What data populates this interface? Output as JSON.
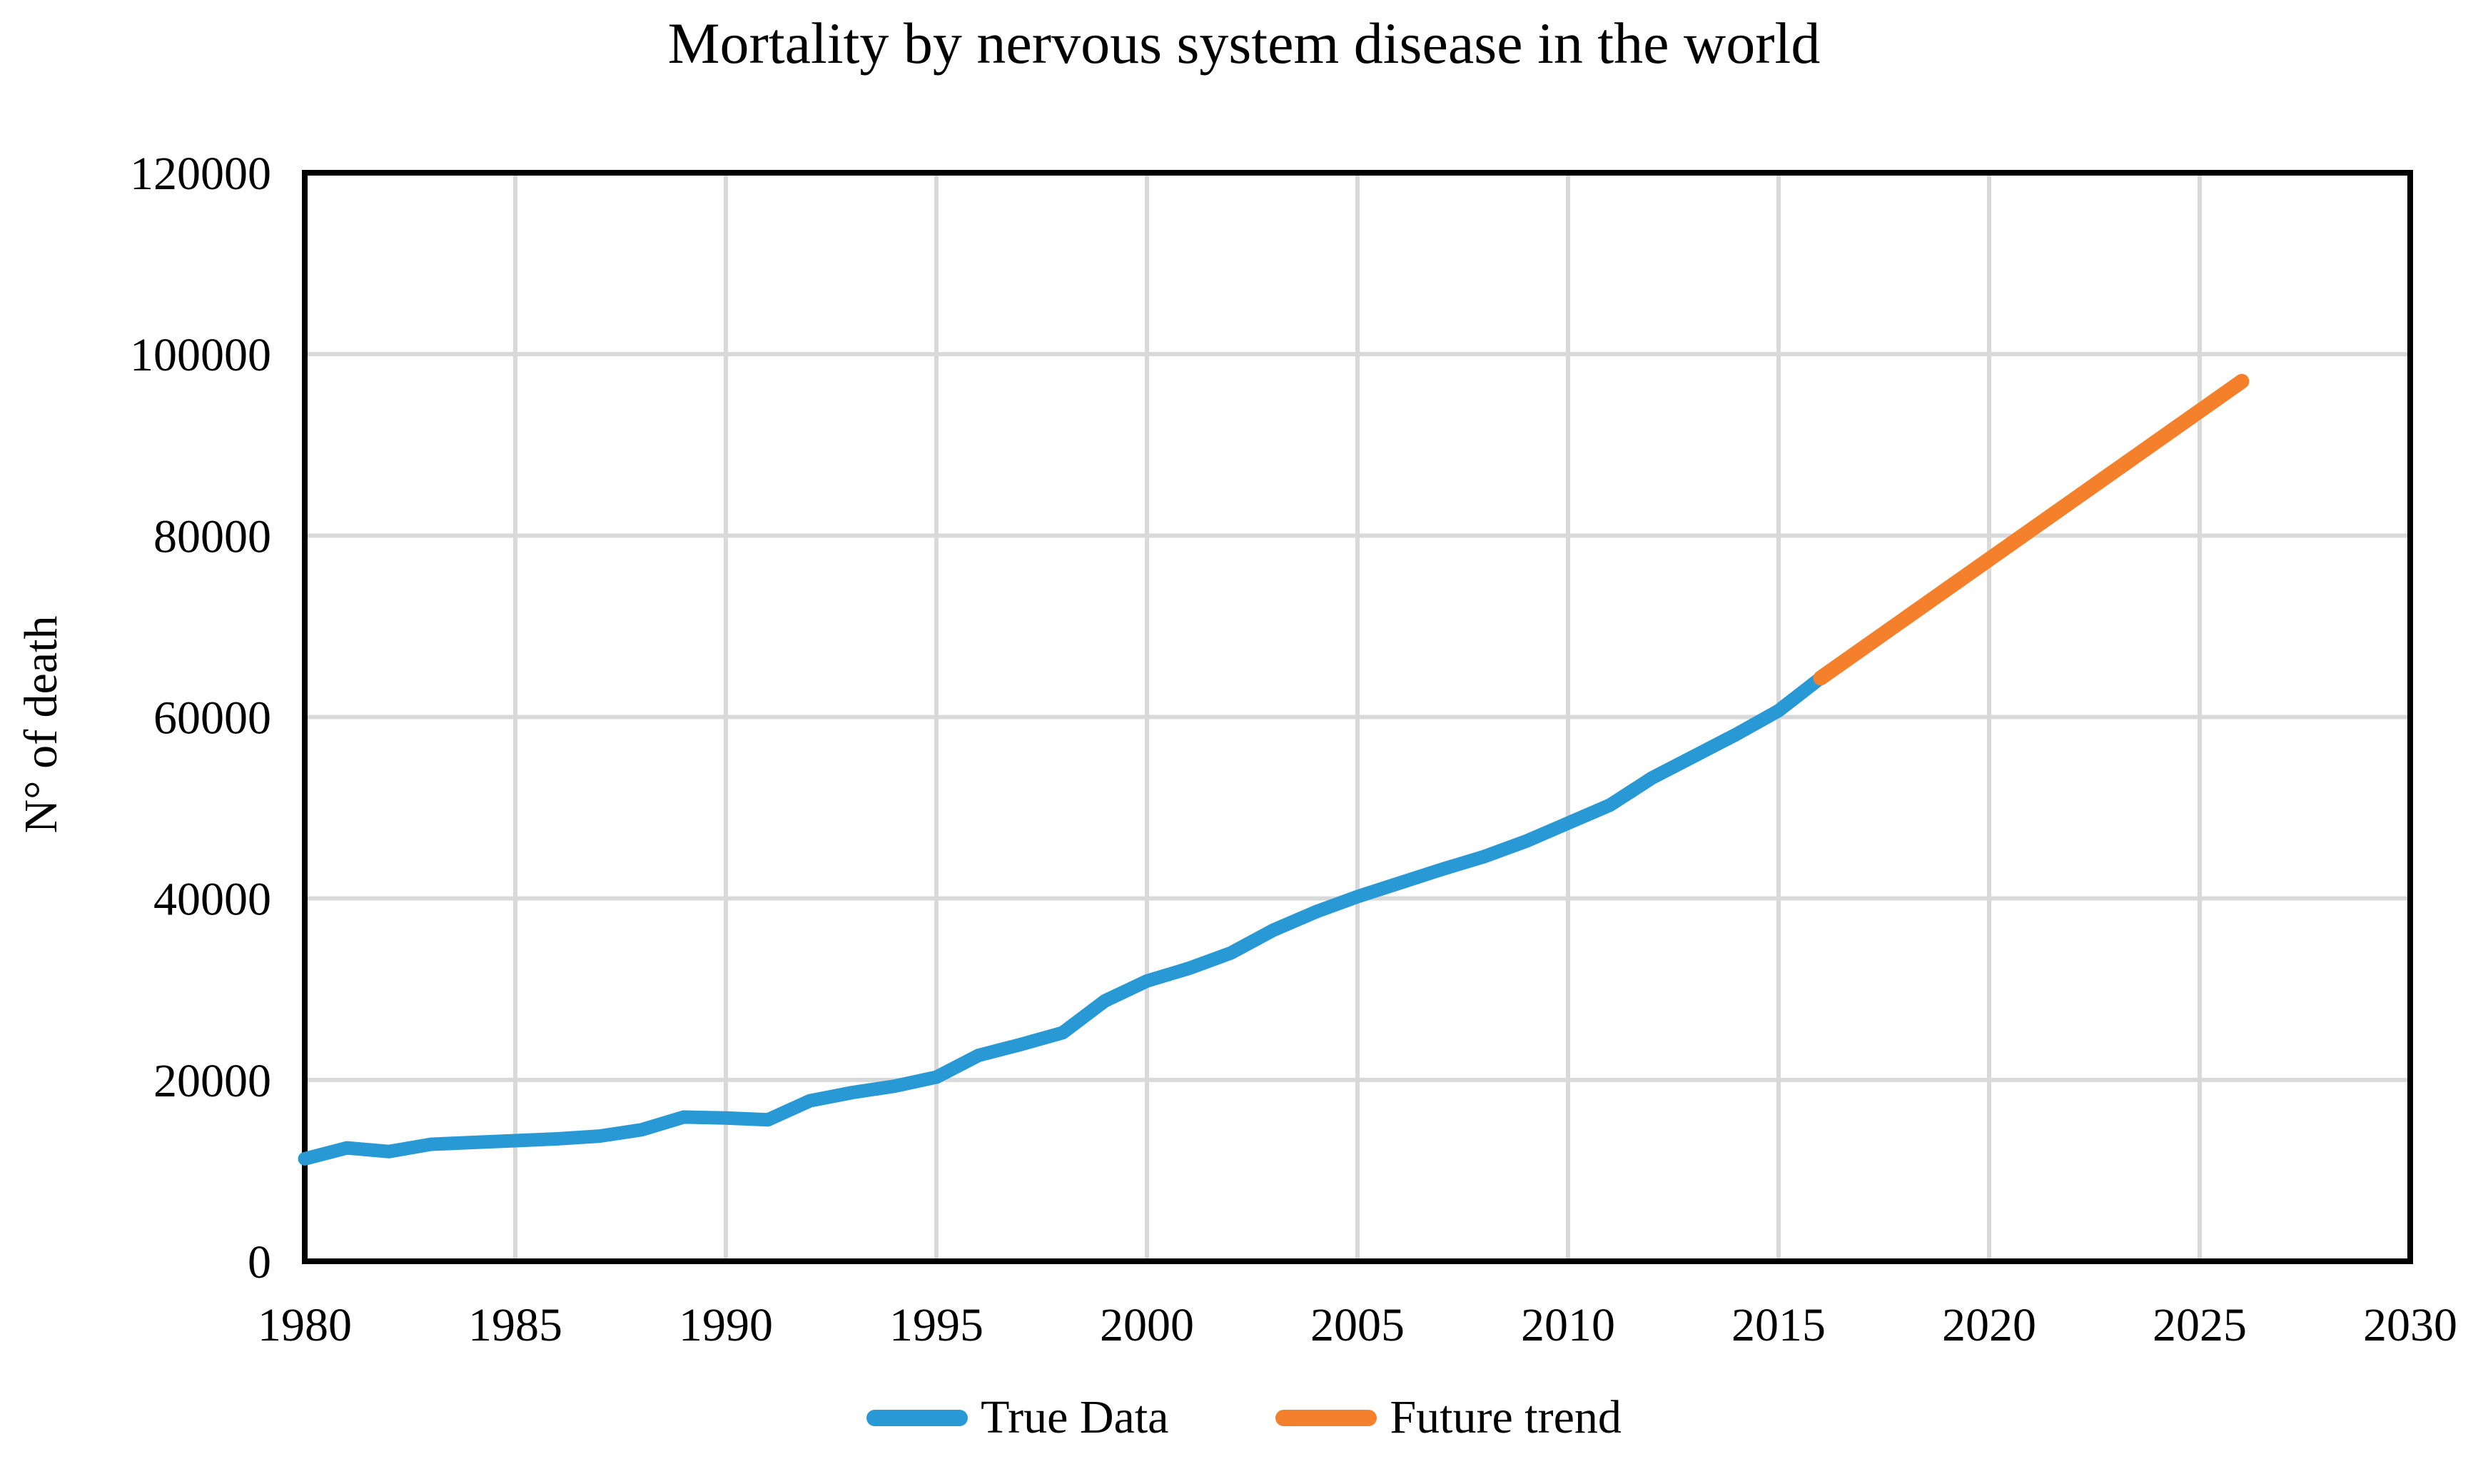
{
  "title": "Mortality by nervous system disease in the world",
  "y_axis": {
    "label": "N° of death",
    "ticks": [
      "0",
      "20000",
      "40000",
      "60000",
      "80000",
      "100000",
      "120000"
    ],
    "min": 0,
    "max": 120000,
    "step": 20000
  },
  "x_axis": {
    "ticks": [
      "1980",
      "1985",
      "1990",
      "1995",
      "2000",
      "2005",
      "2010",
      "2015",
      "2020",
      "2025",
      "2030"
    ],
    "min": 1980,
    "max": 2030,
    "step": 5
  },
  "legend": {
    "items": [
      {
        "label": "True Data",
        "color": "#2899D5"
      },
      {
        "label": "Future trend",
        "color": "#F5802B"
      }
    ]
  },
  "colors": {
    "true_data": "#2899D5",
    "future_trend": "#F5802B",
    "grid": "#D9D9D9",
    "axis": "#000000",
    "background": "#FFFFFF"
  },
  "chart_data": {
    "type": "line",
    "title": "Mortality by nervous system disease in the world",
    "xlabel": "",
    "ylabel": "N° of death",
    "x_range": [
      1980,
      2030
    ],
    "y_range": [
      0,
      120000
    ],
    "x_tick_step": 5,
    "y_tick_step": 20000,
    "grid": true,
    "legend_position": "bottom",
    "series": [
      {
        "name": "True Data",
        "color": "#2899D5",
        "x": [
          1980,
          1981,
          1982,
          1983,
          1984,
          1985,
          1986,
          1987,
          1988,
          1989,
          1990,
          1991,
          1992,
          1993,
          1994,
          1995,
          1996,
          1997,
          1998,
          1999,
          2000,
          2001,
          2002,
          2003,
          2004,
          2005,
          2006,
          2007,
          2008,
          2009,
          2010,
          2011,
          2012,
          2013,
          2014,
          2015,
          2016
        ],
        "values": [
          11300,
          12500,
          12100,
          12900,
          13100,
          13300,
          13500,
          13800,
          14500,
          15900,
          15800,
          15600,
          17700,
          18600,
          19300,
          20300,
          22700,
          23900,
          25200,
          28700,
          30900,
          32300,
          34000,
          36500,
          38500,
          40200,
          41700,
          43200,
          44600,
          46300,
          48300,
          50300,
          53300,
          55700,
          58100,
          60700,
          64300
        ]
      },
      {
        "name": "Future trend",
        "color": "#F5802B",
        "x": [
          2016,
          2026
        ],
        "values": [
          64300,
          97000
        ]
      }
    ]
  }
}
